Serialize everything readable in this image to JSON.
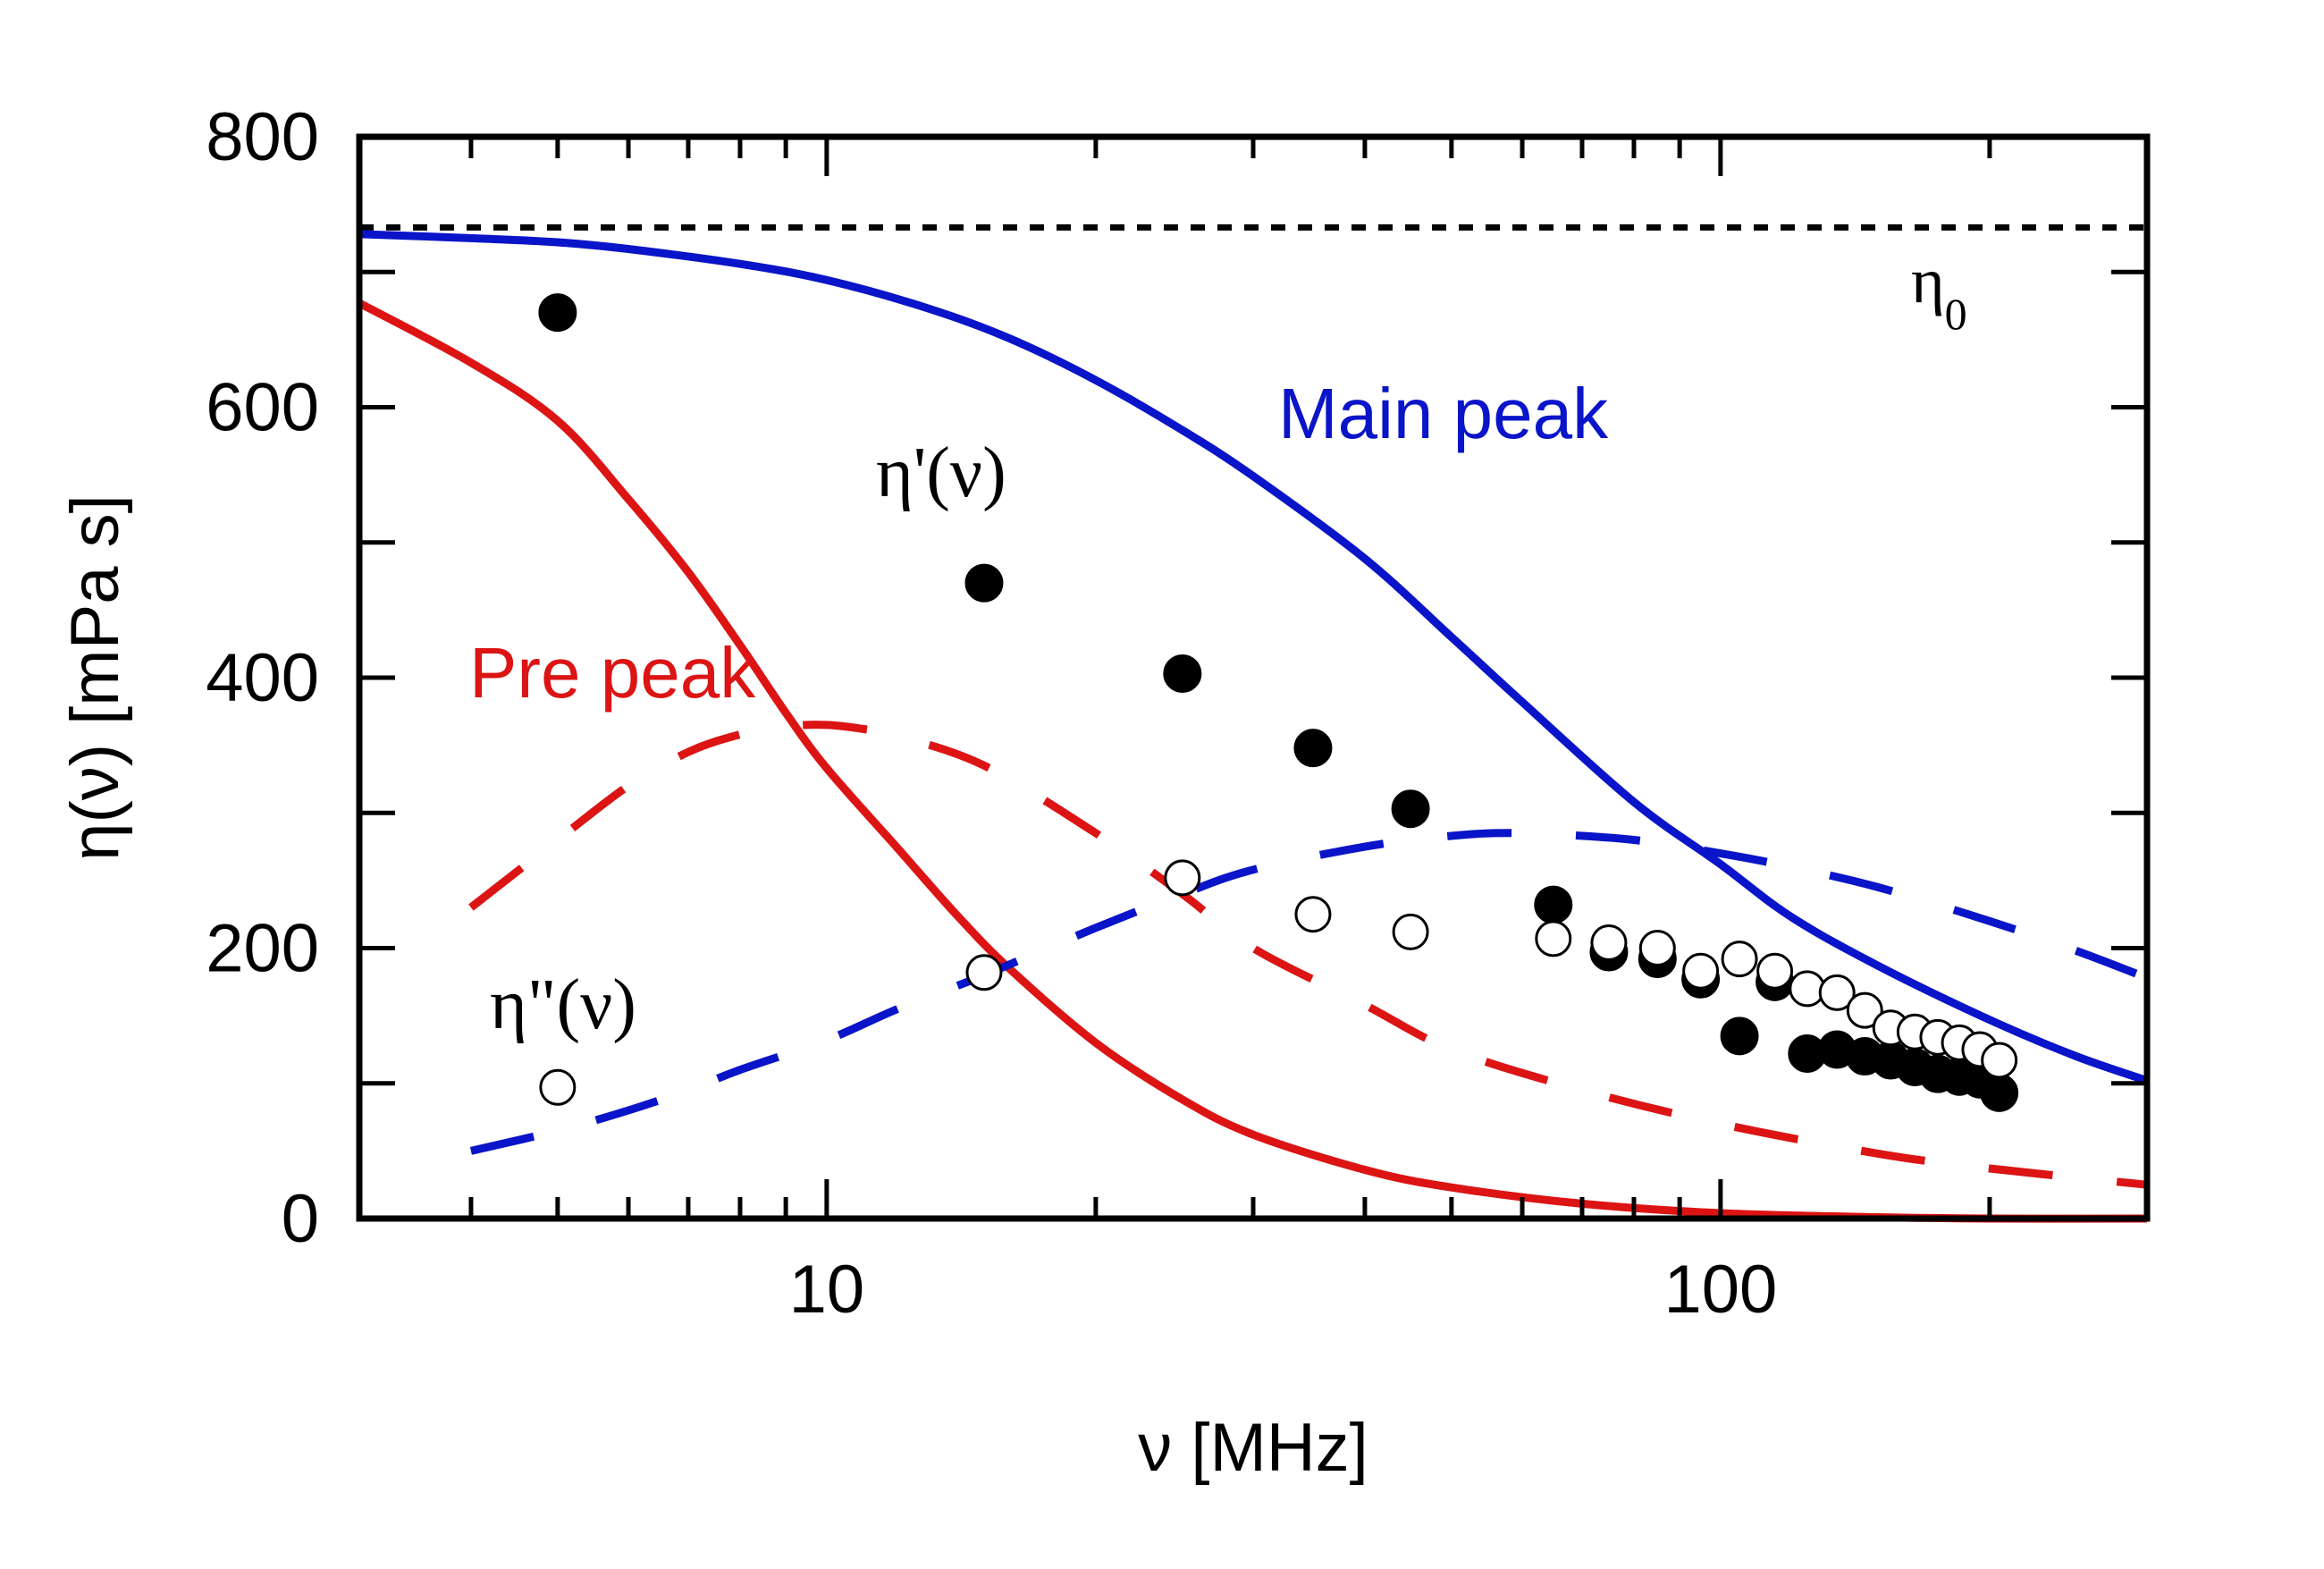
{
  "chart_data": {
    "type": "line",
    "xlabel": "ν [MHz]",
    "ylabel": "η(ν) [mPa s]",
    "xscale": "log",
    "xlim": [
      3,
      300
    ],
    "ylim": [
      0,
      800
    ],
    "x_ticks": [
      {
        "value": 10,
        "label": "10"
      },
      {
        "value": 100,
        "label": "100"
      }
    ],
    "y_ticks": [
      {
        "value": 0,
        "label": "0"
      },
      {
        "value": 200,
        "label": "200"
      },
      {
        "value": 400,
        "label": "400"
      },
      {
        "value": 600,
        "label": "600"
      },
      {
        "value": 800,
        "label": "800"
      }
    ],
    "grid": false,
    "eta0": {
      "value": 733,
      "label": "η",
      "subscript": "0"
    },
    "annotations": {
      "main_peak": "Main peak",
      "pre_peak": "Pre peak",
      "eta_prime": "η'(ν)",
      "eta_double_prime": "η\"(ν)"
    },
    "colors": {
      "main": "#0a14c8",
      "pre": "#dc1414",
      "points": "#000000",
      "eta0": "#000000"
    },
    "series": [
      {
        "style": "solid",
        "color": "#0a14c8",
        "x": [
          3,
          4,
          5,
          6,
          8,
          10,
          13,
          16,
          20,
          25,
          30,
          40,
          50,
          60,
          80,
          100,
          120,
          150,
          200,
          250,
          300
        ],
        "y": [
          728,
          725,
          722,
          717,
          706,
          694,
          673,
          651,
          620,
          583,
          549,
          488,
          430,
          382,
          308,
          262,
          223,
          187,
          147,
          120,
          102
        ]
      },
      {
        "style": "solid",
        "color": "#dc1414",
        "x": [
          3,
          4,
          5,
          6,
          7,
          8,
          9,
          10,
          12,
          14,
          16,
          20,
          25,
          30,
          40,
          50,
          70,
          100,
          150,
          200,
          300
        ],
        "y": [
          677,
          633,
          590,
          532,
          478,
          424,
          374,
          333,
          274,
          224,
          185,
          130,
          88,
          62,
          36,
          23,
          11,
          4,
          1,
          0,
          0
        ]
      },
      {
        "style": "dashed",
        "color": "#0a14c8",
        "x": [
          4,
          5,
          6,
          7,
          8,
          10,
          12,
          15,
          20,
          25,
          30,
          40,
          50,
          60,
          80,
          100,
          120,
          150,
          200,
          250,
          300
        ],
        "y": [
          50,
          65,
          80,
          95,
          110,
          132,
          155,
          180,
          215,
          240,
          258,
          275,
          283,
          285,
          280,
          270,
          260,
          245,
          220,
          198,
          178
        ]
      },
      {
        "style": "dashed",
        "color": "#dc1414",
        "x": [
          4,
          5,
          6,
          7,
          8,
          9,
          10,
          11,
          12,
          15,
          20,
          25,
          30,
          40,
          50,
          70,
          100,
          150,
          200,
          300
        ],
        "y": [
          230,
          280,
          320,
          345,
          358,
          364,
          365,
          362,
          357,
          335,
          285,
          240,
          200,
          158,
          125,
          95,
          70,
          48,
          37,
          25
        ]
      }
    ],
    "points_filled": [
      {
        "x": 5,
        "y": 670
      },
      {
        "x": 15,
        "y": 470
      },
      {
        "x": 25,
        "y": 403
      },
      {
        "x": 35,
        "y": 348
      },
      {
        "x": 45,
        "y": 303
      },
      {
        "x": 65,
        "y": 232
      },
      {
        "x": 75,
        "y": 197
      },
      {
        "x": 85,
        "y": 192
      },
      {
        "x": 95,
        "y": 177
      },
      {
        "x": 105,
        "y": 135
      },
      {
        "x": 115,
        "y": 175
      },
      {
        "x": 125,
        "y": 122
      },
      {
        "x": 135,
        "y": 125
      },
      {
        "x": 145,
        "y": 120
      },
      {
        "x": 155,
        "y": 117
      },
      {
        "x": 165,
        "y": 112
      },
      {
        "x": 175,
        "y": 107
      },
      {
        "x": 185,
        "y": 105
      },
      {
        "x": 195,
        "y": 103
      },
      {
        "x": 205,
        "y": 93
      }
    ],
    "points_open": [
      {
        "x": 5,
        "y": 97
      },
      {
        "x": 15,
        "y": 182
      },
      {
        "x": 25,
        "y": 252
      },
      {
        "x": 35,
        "y": 225
      },
      {
        "x": 45,
        "y": 212
      },
      {
        "x": 65,
        "y": 207
      },
      {
        "x": 75,
        "y": 204
      },
      {
        "x": 85,
        "y": 200
      },
      {
        "x": 95,
        "y": 183
      },
      {
        "x": 105,
        "y": 192
      },
      {
        "x": 115,
        "y": 183
      },
      {
        "x": 125,
        "y": 170
      },
      {
        "x": 135,
        "y": 167
      },
      {
        "x": 145,
        "y": 154
      },
      {
        "x": 155,
        "y": 141
      },
      {
        "x": 165,
        "y": 138
      },
      {
        "x": 175,
        "y": 134
      },
      {
        "x": 185,
        "y": 130
      },
      {
        "x": 195,
        "y": 125
      },
      {
        "x": 205,
        "y": 117
      }
    ]
  }
}
